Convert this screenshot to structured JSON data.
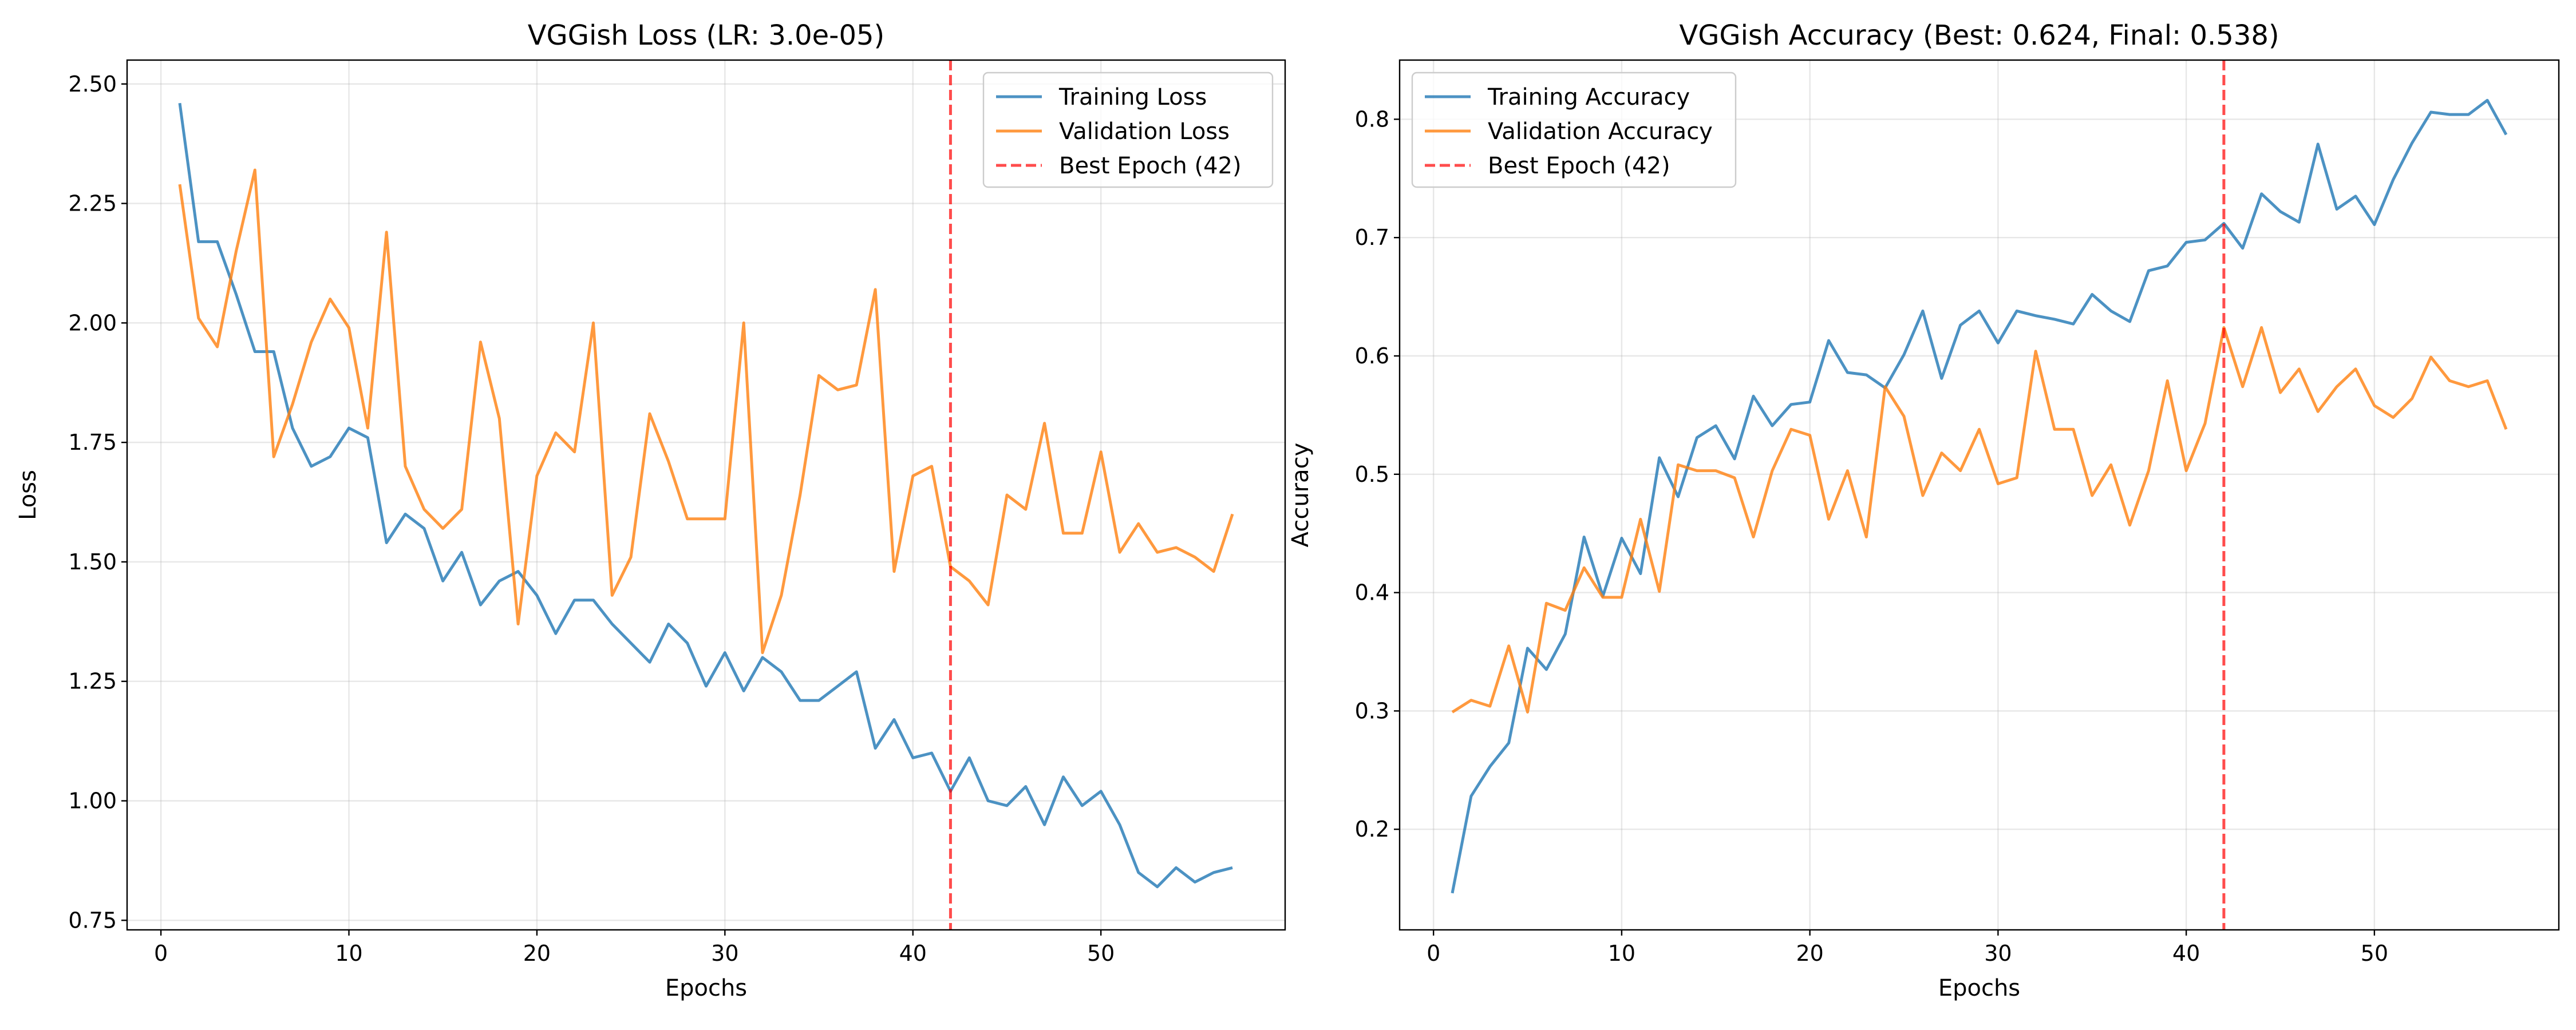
{
  "chart_data": [
    {
      "type": "line",
      "title": "VGGish Loss (LR: 3.0e-05)",
      "xlabel": "Epochs",
      "ylabel": "Loss",
      "xlim": [
        -1.8,
        59.8
      ],
      "ylim": [
        0.73,
        2.55
      ],
      "xticks": [
        0,
        10,
        20,
        30,
        40,
        50
      ],
      "yticks": [
        0.75,
        1.0,
        1.25,
        1.5,
        1.75,
        2.0,
        2.25,
        2.5
      ],
      "ytick_labels": [
        "0.75",
        "1.00",
        "1.25",
        "1.50",
        "1.75",
        "2.00",
        "2.25",
        "2.50"
      ],
      "grid": true,
      "legend_position": "top-right",
      "colors": {
        "training": "#1f77b4",
        "validation": "#ff7f0e",
        "best": "#ff0000"
      },
      "best_epoch": 42,
      "best_label": "Best Epoch (42)",
      "x": [
        1,
        2,
        3,
        4,
        5,
        6,
        7,
        8,
        9,
        10,
        11,
        12,
        13,
        14,
        15,
        16,
        17,
        18,
        19,
        20,
        21,
        22,
        23,
        24,
        25,
        26,
        27,
        28,
        29,
        30,
        31,
        32,
        33,
        34,
        35,
        36,
        37,
        38,
        39,
        40,
        41,
        42,
        43,
        44,
        45,
        46,
        47,
        48,
        49,
        50,
        51,
        52,
        53,
        54,
        55,
        56,
        57
      ],
      "series": [
        {
          "name": "Training Loss",
          "values": [
            2.46,
            2.17,
            2.17,
            2.06,
            1.94,
            1.94,
            1.78,
            1.7,
            1.72,
            1.78,
            1.76,
            1.54,
            1.6,
            1.57,
            1.46,
            1.52,
            1.41,
            1.46,
            1.48,
            1.43,
            1.35,
            1.42,
            1.42,
            1.37,
            1.33,
            1.29,
            1.37,
            1.33,
            1.24,
            1.31,
            1.23,
            1.3,
            1.27,
            1.21,
            1.21,
            1.24,
            1.27,
            1.11,
            1.17,
            1.09,
            1.1,
            1.02,
            1.09,
            1.0,
            0.99,
            1.03,
            0.95,
            1.05,
            0.99,
            1.02,
            0.95,
            0.85,
            0.82,
            0.86,
            0.83,
            0.85,
            0.86
          ]
        },
        {
          "name": "Validation Loss",
          "values": [
            2.29,
            2.01,
            1.95,
            2.15,
            2.32,
            1.72,
            1.83,
            1.96,
            2.05,
            1.99,
            1.78,
            2.19,
            1.7,
            1.61,
            1.57,
            1.61,
            1.96,
            1.8,
            1.37,
            1.68,
            1.77,
            1.73,
            2.0,
            1.43,
            1.51,
            1.81,
            1.71,
            1.59,
            1.59,
            1.59,
            2.0,
            1.31,
            1.43,
            1.64,
            1.89,
            1.86,
            1.87,
            2.07,
            1.48,
            1.68,
            1.7,
            1.49,
            1.46,
            1.41,
            1.64,
            1.61,
            1.79,
            1.56,
            1.56,
            1.73,
            1.52,
            1.58,
            1.52,
            1.53,
            1.51,
            1.48,
            1.6
          ]
        }
      ]
    },
    {
      "type": "line",
      "title": "VGGish Accuracy (Best: 0.624, Final: 0.538)",
      "xlabel": "Epochs",
      "ylabel": "Accuracy",
      "xlim": [
        -1.8,
        59.8
      ],
      "ylim": [
        0.115,
        0.85
      ],
      "xticks": [
        0,
        10,
        20,
        30,
        40,
        50
      ],
      "yticks": [
        0.2,
        0.3,
        0.4,
        0.5,
        0.6,
        0.7,
        0.8
      ],
      "ytick_labels": [
        "0.2",
        "0.3",
        "0.4",
        "0.5",
        "0.6",
        "0.7",
        "0.8"
      ],
      "grid": true,
      "legend_position": "top-left",
      "colors": {
        "training": "#1f77b4",
        "validation": "#ff7f0e",
        "best": "#ff0000"
      },
      "best_epoch": 42,
      "best_label": "Best Epoch (42)",
      "x": [
        1,
        2,
        3,
        4,
        5,
        6,
        7,
        8,
        9,
        10,
        11,
        12,
        13,
        14,
        15,
        16,
        17,
        18,
        19,
        20,
        21,
        22,
        23,
        24,
        25,
        26,
        27,
        28,
        29,
        30,
        31,
        32,
        33,
        34,
        35,
        36,
        37,
        38,
        39,
        40,
        41,
        42,
        43,
        44,
        45,
        46,
        47,
        48,
        49,
        50,
        51,
        52,
        53,
        54,
        55,
        56,
        57
      ],
      "series": [
        {
          "name": "Training Accuracy",
          "values": [
            0.146,
            0.228,
            0.253,
            0.273,
            0.353,
            0.335,
            0.365,
            0.447,
            0.397,
            0.446,
            0.416,
            0.514,
            0.481,
            0.531,
            0.541,
            0.513,
            0.566,
            0.541,
            0.559,
            0.561,
            0.613,
            0.586,
            0.584,
            0.573,
            0.601,
            0.638,
            0.581,
            0.626,
            0.638,
            0.611,
            0.638,
            0.634,
            0.631,
            0.627,
            0.652,
            0.638,
            0.629,
            0.672,
            0.676,
            0.696,
            0.698,
            0.712,
            0.691,
            0.737,
            0.722,
            0.713,
            0.779,
            0.724,
            0.735,
            0.711,
            0.749,
            0.78,
            0.806,
            0.804,
            0.804,
            0.816,
            0.787
          ]
        },
        {
          "name": "Validation Accuracy",
          "values": [
            0.299,
            0.309,
            0.304,
            0.355,
            0.299,
            0.391,
            0.385,
            0.421,
            0.396,
            0.396,
            0.462,
            0.401,
            0.508,
            0.503,
            0.503,
            0.497,
            0.447,
            0.503,
            0.538,
            0.533,
            0.462,
            0.503,
            0.447,
            0.574,
            0.549,
            0.482,
            0.518,
            0.503,
            0.538,
            0.492,
            0.497,
            0.604,
            0.538,
            0.538,
            0.482,
            0.508,
            0.457,
            0.503,
            0.579,
            0.503,
            0.543,
            0.624,
            0.574,
            0.624,
            0.569,
            0.589,
            0.553,
            0.574,
            0.589,
            0.558,
            0.548,
            0.564,
            0.599,
            0.579,
            0.574,
            0.579,
            0.538
          ]
        }
      ]
    }
  ]
}
